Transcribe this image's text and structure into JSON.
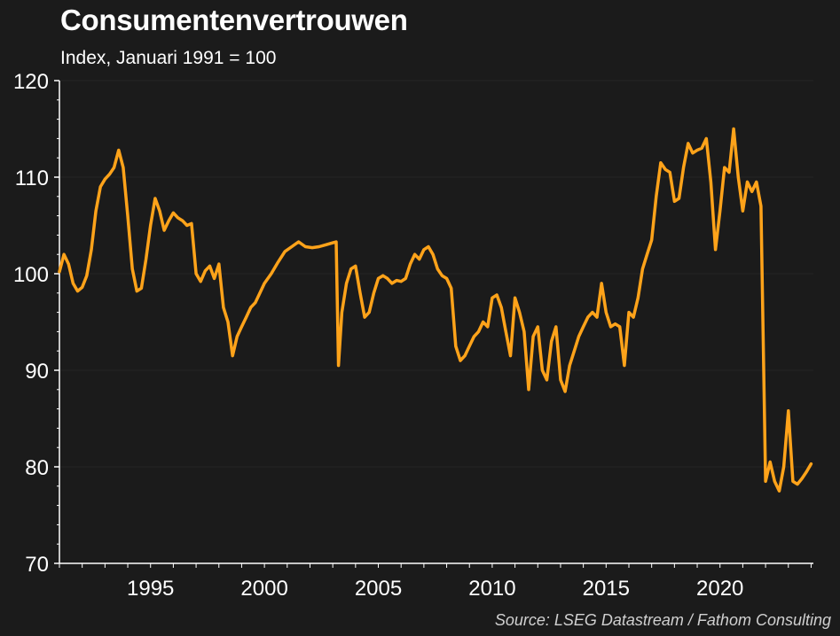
{
  "chart_data": {
    "type": "line",
    "title": "Consumentenvertrouwen",
    "subtitle": "Index, Januari 1991 = 100",
    "source": "Source: LSEG Datastream / Fathom Consulting",
    "xlabel": "",
    "ylabel": "",
    "xlim": [
      1991.0,
      2024.1
    ],
    "ylim": [
      70,
      120
    ],
    "yticks": [
      70,
      80,
      90,
      100,
      110,
      120
    ],
    "xticks": [
      1995,
      2000,
      2005,
      2010,
      2015,
      2020
    ],
    "grid": true,
    "line_color": "#ffa31a",
    "series": [
      {
        "name": "",
        "x": [
          1991.0,
          1991.2,
          1991.4,
          1991.6,
          1991.8,
          1992.0,
          1992.2,
          1992.4,
          1992.6,
          1992.8,
          1993.0,
          1993.2,
          1993.4,
          1993.6,
          1993.8,
          1994.0,
          1994.2,
          1994.4,
          1994.6,
          1994.8,
          1995.0,
          1995.2,
          1995.4,
          1995.6,
          1995.8,
          1996.0,
          1996.2,
          1996.4,
          1996.6,
          1996.8,
          1997.0,
          1997.2,
          1997.4,
          1997.6,
          1997.8,
          1998.0,
          1998.2,
          1998.4,
          1998.6,
          1998.8,
          1999.0,
          1999.2,
          1999.4,
          1999.6,
          1999.8,
          2000.0,
          2000.3,
          2000.6,
          2000.9,
          2001.2,
          2001.5,
          2001.8,
          2002.1,
          2002.4,
          2002.7,
          2003.0,
          2003.15,
          2003.25,
          2003.4,
          2003.6,
          2003.8,
          2004.0,
          2004.2,
          2004.4,
          2004.6,
          2004.8,
          2005.0,
          2005.2,
          2005.4,
          2005.6,
          2005.8,
          2006.0,
          2006.2,
          2006.4,
          2006.6,
          2006.8,
          2007.0,
          2007.2,
          2007.4,
          2007.6,
          2007.8,
          2008.0,
          2008.2,
          2008.4,
          2008.6,
          2008.8,
          2009.0,
          2009.2,
          2009.4,
          2009.6,
          2009.8,
          2010.0,
          2010.2,
          2010.4,
          2010.6,
          2010.8,
          2011.0,
          2011.2,
          2011.4,
          2011.6,
          2011.8,
          2012.0,
          2012.2,
          2012.4,
          2012.6,
          2012.8,
          2013.0,
          2013.2,
          2013.4,
          2013.6,
          2013.8,
          2014.0,
          2014.2,
          2014.4,
          2014.6,
          2014.8,
          2015.0,
          2015.2,
          2015.4,
          2015.6,
          2015.8,
          2016.0,
          2016.2,
          2016.4,
          2016.6,
          2016.8,
          2017.0,
          2017.2,
          2017.4,
          2017.6,
          2017.8,
          2018.0,
          2018.2,
          2018.4,
          2018.6,
          2018.8,
          2019.0,
          2019.2,
          2019.4,
          2019.6,
          2019.8,
          2020.0,
          2020.2,
          2020.4,
          2020.6,
          2020.8,
          2021.0,
          2021.2,
          2021.4,
          2021.6,
          2021.8,
          2022.0,
          2022.2,
          2022.4,
          2022.6,
          2022.8,
          2023.0,
          2023.2,
          2023.4,
          2023.6,
          2023.8,
          2024.0
        ],
        "values": [
          100.2,
          102.0,
          101.0,
          99.0,
          98.2,
          98.6,
          99.8,
          102.5,
          106.5,
          109.0,
          109.8,
          110.3,
          111.0,
          112.8,
          111.0,
          106.0,
          100.5,
          98.2,
          98.5,
          101.5,
          105.0,
          107.8,
          106.5,
          104.5,
          105.5,
          106.3,
          105.8,
          105.5,
          105.0,
          105.2,
          100.0,
          99.2,
          100.3,
          100.8,
          99.5,
          101.0,
          96.5,
          95.0,
          91.5,
          93.5,
          94.5,
          95.5,
          96.5,
          97.0,
          98.0,
          99.0,
          100.0,
          101.2,
          102.3,
          102.8,
          103.3,
          102.8,
          102.7,
          102.8,
          103.0,
          103.2,
          103.3,
          90.5,
          96.0,
          99.0,
          100.5,
          100.8,
          98.0,
          95.5,
          96.0,
          98.0,
          99.5,
          99.8,
          99.5,
          99.0,
          99.3,
          99.2,
          99.5,
          101.0,
          102.0,
          101.5,
          102.5,
          102.8,
          102.0,
          100.5,
          99.8,
          99.5,
          98.5,
          92.5,
          91.0,
          91.5,
          92.5,
          93.5,
          94.0,
          95.0,
          94.5,
          97.5,
          97.8,
          96.5,
          94.0,
          91.5,
          97.5,
          96.0,
          94.0,
          88.0,
          93.5,
          94.5,
          90.0,
          89.0,
          93.0,
          94.5,
          89.0,
          87.8,
          90.5,
          92.0,
          93.5,
          94.5,
          95.5,
          96.0,
          95.5,
          99.0,
          96.0,
          94.5,
          94.8,
          94.5,
          90.5,
          96.0,
          95.5,
          97.5,
          100.5,
          102.0,
          103.5,
          108.0,
          111.5,
          110.8,
          110.5,
          107.5,
          107.8,
          111.0,
          113.5,
          112.5,
          112.8,
          113.0,
          114.0,
          109.5,
          102.5,
          106.5,
          111.0,
          110.5,
          115.0,
          110.0,
          106.5,
          109.5,
          108.5,
          109.5,
          107.0,
          78.5,
          80.5,
          78.5,
          77.5,
          80.0,
          85.8,
          78.5,
          78.2,
          78.8,
          79.5,
          80.3
        ]
      }
    ]
  }
}
